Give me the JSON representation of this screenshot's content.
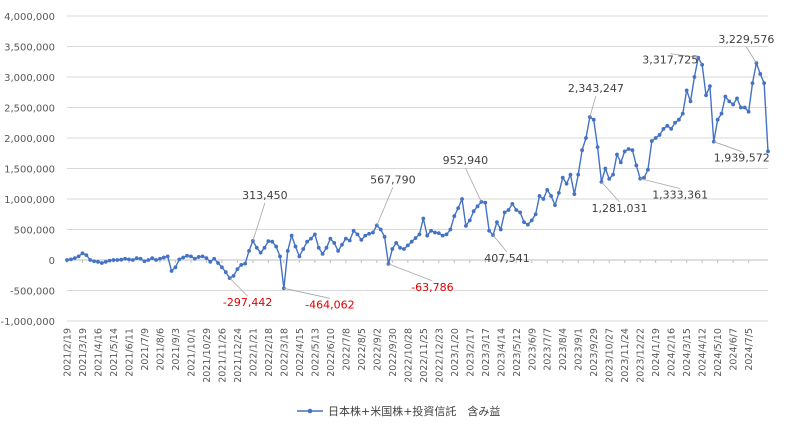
{
  "chart_data": {
    "type": "line",
    "title": "",
    "xlabel": "",
    "ylabel": "",
    "ylim": [
      -1000000,
      4000000
    ],
    "yticks": [
      -1000000,
      -500000,
      0,
      500000,
      1000000,
      1500000,
      2000000,
      2500000,
      3000000,
      3500000,
      4000000
    ],
    "ytick_labels": [
      "-1,000,000",
      "-500,000",
      "0",
      "500,000",
      "1,000,000",
      "1,500,000",
      "2,000,000",
      "2,500,000",
      "3,000,000",
      "3,500,000",
      "4,000,000"
    ],
    "grid": true,
    "legend_position": "bottom",
    "series": [
      {
        "name": "日本株+米国株+投資信託　含み益",
        "color": "#4472C4",
        "values": [
          0,
          10000,
          30000,
          60000,
          110000,
          80000,
          0,
          -20000,
          -30000,
          -50000,
          -30000,
          -10000,
          0,
          0,
          5000,
          20000,
          10000,
          0,
          30000,
          20000,
          -20000,
          0,
          30000,
          0,
          20000,
          40000,
          60000,
          -180000,
          -120000,
          10000,
          40000,
          70000,
          60000,
          20000,
          50000,
          60000,
          30000,
          -30000,
          20000,
          -50000,
          -120000,
          -200000,
          -297442,
          -260000,
          -150000,
          -80000,
          -60000,
          150000,
          313450,
          200000,
          120000,
          200000,
          310000,
          300000,
          220000,
          60000,
          -464062,
          150000,
          400000,
          220000,
          60000,
          180000,
          300000,
          350000,
          420000,
          200000,
          100000,
          200000,
          350000,
          280000,
          150000,
          250000,
          350000,
          320000,
          480000,
          420000,
          330000,
          400000,
          430000,
          450000,
          567790,
          500000,
          380000,
          -63786,
          180000,
          280000,
          200000,
          180000,
          240000,
          300000,
          360000,
          420000,
          680000,
          400000,
          480000,
          450000,
          440000,
          400000,
          420000,
          500000,
          720000,
          850000,
          1000000,
          560000,
          650000,
          800000,
          880000,
          952940,
          940000,
          480000,
          407541,
          620000,
          500000,
          780000,
          820000,
          920000,
          820000,
          780000,
          620000,
          580000,
          650000,
          750000,
          1050000,
          1000000,
          1150000,
          1050000,
          900000,
          1100000,
          1350000,
          1250000,
          1400000,
          1080000,
          1400000,
          1800000,
          2000000,
          2343247,
          2300000,
          1850000,
          1281031,
          1500000,
          1330000,
          1400000,
          1730000,
          1600000,
          1780000,
          1820000,
          1800000,
          1550000,
          1333361,
          1350000,
          1480000,
          1950000,
          2000000,
          2050000,
          2150000,
          2200000,
          2150000,
          2250000,
          2300000,
          2400000,
          2780000,
          2600000,
          3000000,
          3317725,
          3200000,
          2700000,
          2850000,
          1939572,
          2300000,
          2400000,
          2680000,
          2600000,
          2550000,
          2650000,
          2500000,
          2500000,
          2430000,
          2900000,
          3229576,
          3050000,
          2900000,
          1780000
        ],
        "annotations": [
          {
            "index": 42,
            "label": "-297,442",
            "color": "#E00000"
          },
          {
            "index": 48,
            "label": "313,450",
            "color": "#404040"
          },
          {
            "index": 56,
            "label": "-464,062",
            "color": "#E00000"
          },
          {
            "index": 80,
            "label": "567,790",
            "color": "#404040"
          },
          {
            "index": 83,
            "label": "-63,786",
            "color": "#E00000"
          },
          {
            "index": 107,
            "label": "952,940",
            "color": "#404040"
          },
          {
            "index": 110,
            "label": "407,541",
            "color": "#404040"
          },
          {
            "index": 135,
            "label": "2,343,247",
            "color": "#404040"
          },
          {
            "index": 138,
            "label": "1,281,031",
            "color": "#404040"
          },
          {
            "index": 148,
            "label": "1,333,361",
            "color": "#404040"
          },
          {
            "index": 163,
            "label": "3,317,725",
            "color": "#404040"
          },
          {
            "index": 167,
            "label": "1,939,572",
            "color": "#404040"
          },
          {
            "index": 178,
            "label": "3,229,576",
            "color": "#404040"
          }
        ]
      }
    ],
    "x_tick_labels": [
      "2021/2/19",
      "2021/3/19",
      "2021/4/16",
      "2021/5/14",
      "2021/6/11",
      "2021/7/9",
      "2021/8/6",
      "2021/9/3",
      "2021/10/1",
      "2021/10/29",
      "2021/11/26",
      "2021/12/24",
      "2022/1/21",
      "2022/2/18",
      "2022/3/18",
      "2022/4/15",
      "2022/5/13",
      "2022/6/10",
      "2022/7/8",
      "2022/8/5",
      "2022/9/2",
      "2022/9/30",
      "2022/10/28",
      "2022/11/25",
      "2022/12/23",
      "2023/1/20",
      "2023/2/17",
      "2023/3/17",
      "2023/4/14",
      "2023/5/12",
      "2023/6/9",
      "2023/7/7",
      "2023/8/4",
      "2023/9/1",
      "2023/9/29",
      "2023/10/27",
      "2023/11/24",
      "2023/12/22",
      "2024/1/19",
      "2024/2/16",
      "2024/3/15",
      "2024/4/12",
      "2024/5/10",
      "2024/6/7",
      "2024/7/5"
    ]
  }
}
